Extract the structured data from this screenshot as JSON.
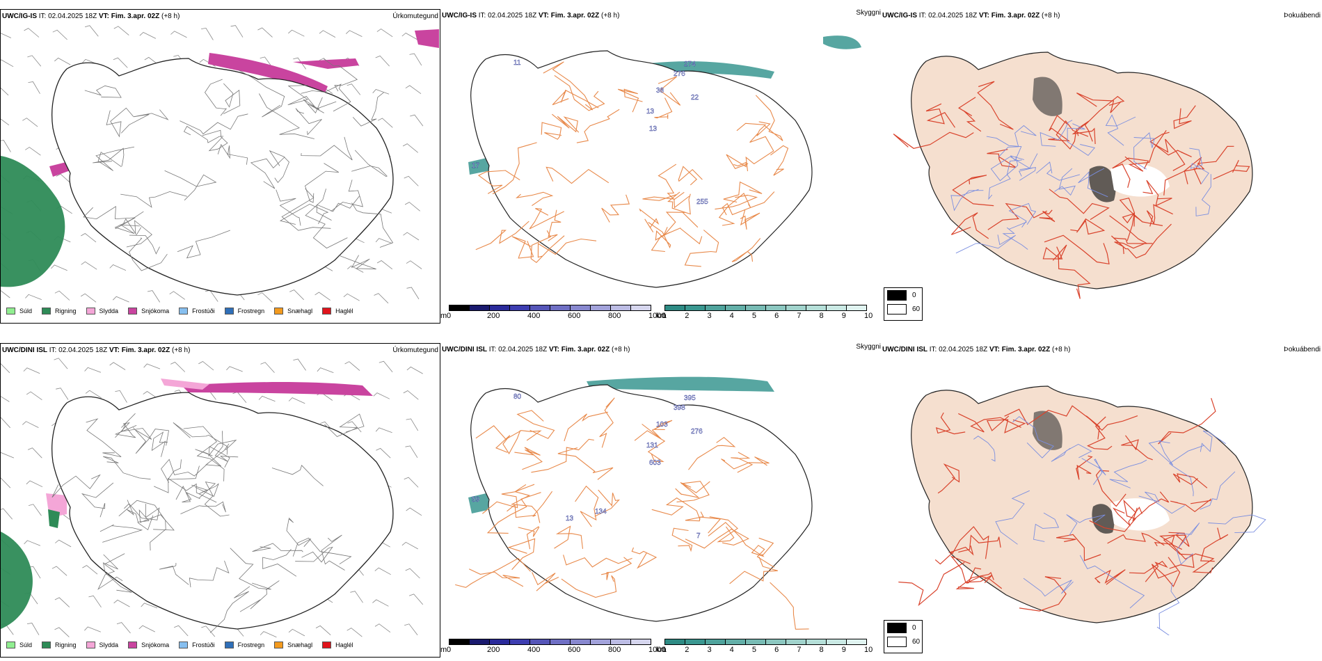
{
  "rows": [
    {
      "panels": [
        {
          "id": "r1",
          "model": "UWC/IG-IS",
          "it_label": "IT:",
          "it_value": "02.04.2025 18Z",
          "vt_label": "VT:",
          "vt_value": "Fim. 3.apr. 02Z",
          "lead": "(+8 h)",
          "title": "Úrkomutegund"
        },
        {
          "id": "c1",
          "model": "UWC/IG-IS",
          "it_label": "IT:",
          "it_value": "02.04.2025 18Z",
          "vt_label": "VT:",
          "vt_value": "Fim. 3.apr. 02Z",
          "lead": "(+8 h)",
          "title": "Skyggni",
          "labels": [
            "11",
            "276",
            "274",
            "13",
            "22",
            "38",
            "13",
            "17",
            "255"
          ]
        },
        {
          "id": "f1",
          "model": "UWC/IG-IS",
          "it_label": "IT:",
          "it_value": "02.04.2025 18Z",
          "vt_label": "VT:",
          "vt_value": "Fim. 3.apr. 02Z",
          "lead": "(+8 h)",
          "title": "Þokuábendi"
        }
      ]
    },
    {
      "panels": [
        {
          "id": "r2",
          "model": "UWC/DINI ISL",
          "it_label": "IT:",
          "it_value": "02.04.2025 18Z",
          "vt_label": "VT:",
          "vt_value": "Fim. 3.apr. 02Z",
          "lead": "(+8 h)",
          "title": "Úrkomutegund"
        },
        {
          "id": "c2",
          "model": "UWC/DINI ISL",
          "it_label": "IT:",
          "it_value": "02.04.2025 18Z",
          "vt_label": "VT:",
          "vt_value": "Fim. 3.apr. 02Z",
          "lead": "(+8 h)",
          "title": "Skyggni",
          "labels": [
            "80",
            "398",
            "395",
            "603",
            "276",
            "103",
            "131",
            "59",
            "7",
            "13",
            "134"
          ]
        },
        {
          "id": "f2",
          "model": "UWC/DINI ISL",
          "it_label": "IT:",
          "it_value": "02.04.2025 18Z",
          "vt_label": "VT:",
          "vt_value": "Fim. 3.apr. 02Z",
          "lead": "(+8 h)",
          "title": "Þokuábendi"
        }
      ]
    }
  ],
  "precip_legend": [
    {
      "label": "Súld",
      "color": "#90ee90"
    },
    {
      "label": "Rigning",
      "color": "#2e8b57"
    },
    {
      "label": "Slydda",
      "color": "#f4a6d7"
    },
    {
      "label": "Snjókoma",
      "color": "#c9449f"
    },
    {
      "label": "Frostúði",
      "color": "#87bfef"
    },
    {
      "label": "Frostregn",
      "color": "#2f6fb8"
    },
    {
      "label": "Snæhagl",
      "color": "#f39a1e"
    },
    {
      "label": "Haglél",
      "color": "#e0141c"
    }
  ],
  "ceiling_scale": {
    "unit": "m",
    "ticks": [
      "0",
      "200",
      "400",
      "600",
      "800",
      "1000"
    ],
    "colors": [
      "#000000",
      "#1a1a6e",
      "#2a2a9a",
      "#3d3db0",
      "#5555b8",
      "#6f6fc4",
      "#8888cf",
      "#a2a2da",
      "#bcbce4",
      "#d6d6ee"
    ]
  },
  "visibility_scale": {
    "unit": "km",
    "ticks": [
      "1",
      "2",
      "3",
      "4",
      "5",
      "6",
      "7",
      "8",
      "9",
      "10"
    ],
    "colors": [
      "#2e8b84",
      "#3a9790",
      "#4fa39c",
      "#63afa8",
      "#78bbb4",
      "#8cc7c0",
      "#a1d3cc",
      "#b5dfd8",
      "#cae9e4",
      "#e0f3f0"
    ]
  },
  "fog_scale": {
    "ticks": [
      "0",
      "60"
    ],
    "colors": [
      "#000000",
      "#ffffff"
    ]
  },
  "colors": {
    "snow": "#c9449f",
    "rain": "#2e8b57",
    "sleet": "#f4a6d7",
    "roads": "#e8894a",
    "ceiling": "#1f2a8f",
    "vis": "#3a9790",
    "fog_land": "#f5dfcf",
    "fog_roads": "#d9432c",
    "fog_rivers": "#7a8ee0"
  }
}
